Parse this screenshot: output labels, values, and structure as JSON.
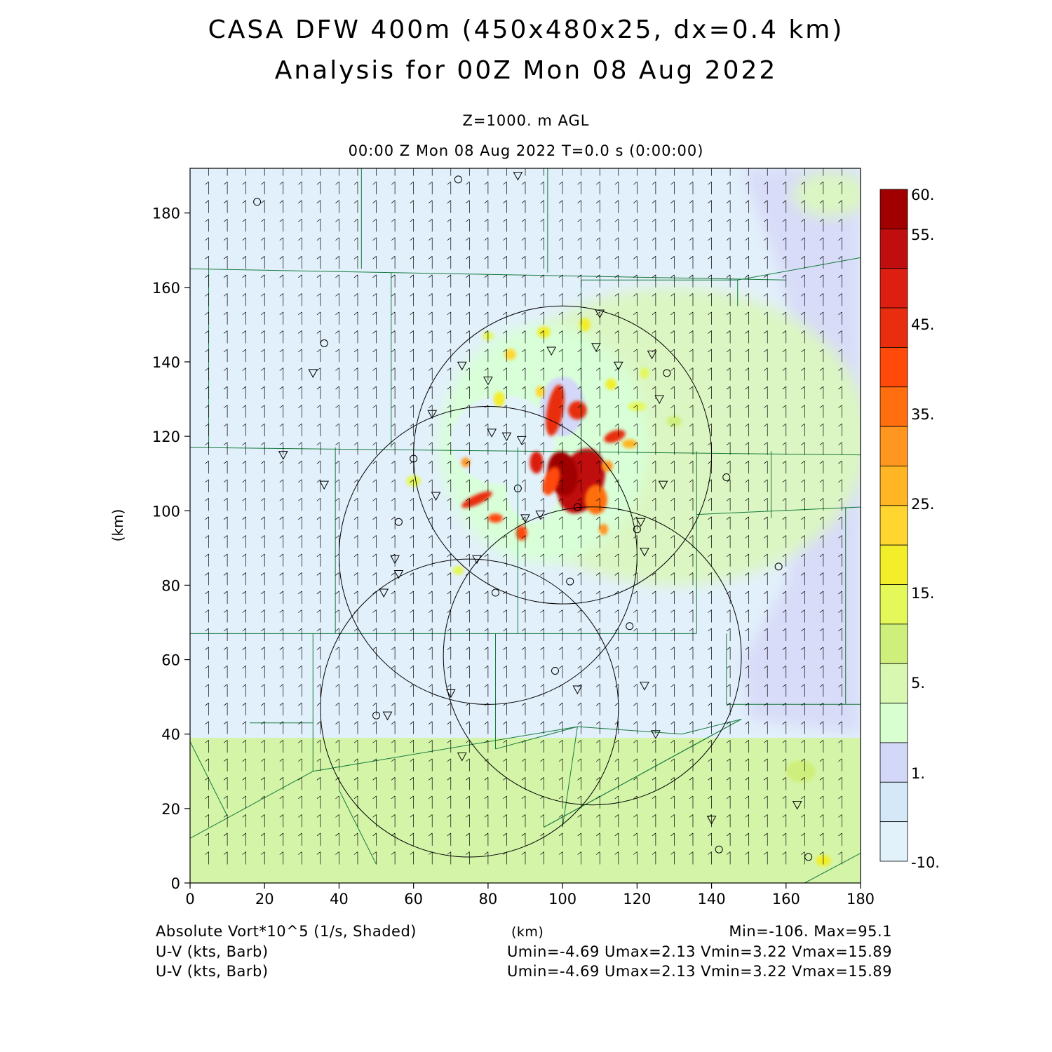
{
  "header": {
    "title_line1": "CASA DFW 400m (450x480x25, dx=0.4 km)",
    "title_line2": "Analysis for 00Z Mon 08 Aug 2022",
    "level": "Z=1000. m AGL",
    "time": "00:00 Z Mon 08 Aug 2022    T=0.0 s (0:00:00)"
  },
  "footer": {
    "field_label": "Absolute Vort*10^5 (1/s, Shaded)",
    "xaxis_unit": "(km)",
    "minmax": "Min=-106. Max=95.1",
    "wind1_label": "U-V (kts, Barb)",
    "wind1_stats": "Umin=-4.69  Umax=2.13  Vmin=3.22  Vmax=15.89",
    "wind2_label": "U-V (kts, Barb)",
    "wind2_stats": "Umin=-4.69  Umax=2.13  Vmin=3.22  Vmax=15.89"
  },
  "chart_data": {
    "type": "heatmap",
    "xlabel": "(km)",
    "ylabel": "(km)",
    "xlim": [
      0,
      180
    ],
    "ylim": [
      0,
      192
    ],
    "xticks": [
      0,
      20,
      40,
      60,
      80,
      100,
      120,
      140,
      160,
      180
    ],
    "yticks": [
      0,
      20,
      40,
      60,
      80,
      100,
      120,
      140,
      160,
      180
    ],
    "colorbar": {
      "labels": [
        "60.",
        "55.",
        "45.",
        "35.",
        "25.",
        "15.",
        "5.",
        "1.",
        "-10."
      ],
      "colors": [
        "#a00000",
        "#c00d0d",
        "#dc1f10",
        "#e82e0e",
        "#ff4a0a",
        "#ff6f10",
        "#ff9620",
        "#ffb524",
        "#ffd630",
        "#f2ee2a",
        "#e4f85a",
        "#cfef7c",
        "#d8f7b0",
        "#d8ffd0",
        "#d4d8f8",
        "#d4e8f8",
        "#e2f2fb"
      ]
    },
    "background_colors": {
      "base": "#e2f0fb",
      "east_band": "#d8dcf8",
      "south_band": "#d4f5a8",
      "green_blob": "#dbf6c2",
      "blob_edge": "#d8ffd8"
    },
    "vortex_center_km": [
      100,
      112
    ],
    "radar_rings_km": [
      {
        "cx": 75,
        "cy": 47,
        "r": 40
      },
      {
        "cx": 80,
        "cy": 88,
        "r": 40
      },
      {
        "cx": 100,
        "cy": 115,
        "r": 40
      },
      {
        "cx": 108,
        "cy": 61,
        "r": 40
      }
    ],
    "barbs": {
      "spacing_km": 5,
      "u_kts": 0,
      "v_kts": 10
    },
    "stations_circle_km": [
      [
        18,
        183
      ],
      [
        72,
        189
      ],
      [
        36,
        145
      ],
      [
        128,
        137
      ],
      [
        120,
        95
      ],
      [
        60,
        114
      ],
      [
        56,
        97
      ],
      [
        88,
        106
      ],
      [
        102,
        81
      ],
      [
        82,
        78
      ],
      [
        118,
        69
      ],
      [
        98,
        57
      ],
      [
        50,
        45
      ],
      [
        104,
        101
      ],
      [
        166,
        7
      ],
      [
        142,
        9
      ],
      [
        158,
        85
      ],
      [
        144,
        109
      ]
    ],
    "stations_triangle_km": [
      [
        88,
        190
      ],
      [
        110,
        153
      ],
      [
        97,
        143
      ],
      [
        109,
        144
      ],
      [
        115,
        139
      ],
      [
        124,
        142
      ],
      [
        126,
        130
      ],
      [
        33,
        137
      ],
      [
        73,
        139
      ],
      [
        80,
        135
      ],
      [
        65,
        126
      ],
      [
        81,
        121
      ],
      [
        85,
        120
      ],
      [
        89,
        119
      ],
      [
        25,
        115
      ],
      [
        36,
        107
      ],
      [
        66,
        104
      ],
      [
        90,
        98
      ],
      [
        94,
        99
      ],
      [
        121,
        97
      ],
      [
        55,
        87
      ],
      [
        56,
        83
      ],
      [
        52,
        78
      ],
      [
        77,
        87
      ],
      [
        127,
        107
      ],
      [
        122,
        89
      ],
      [
        70,
        51
      ],
      [
        104,
        52
      ],
      [
        122,
        53
      ],
      [
        125,
        40
      ],
      [
        73,
        34
      ],
      [
        53,
        45
      ],
      [
        140,
        17
      ],
      [
        163,
        21
      ]
    ],
    "annotations": []
  }
}
